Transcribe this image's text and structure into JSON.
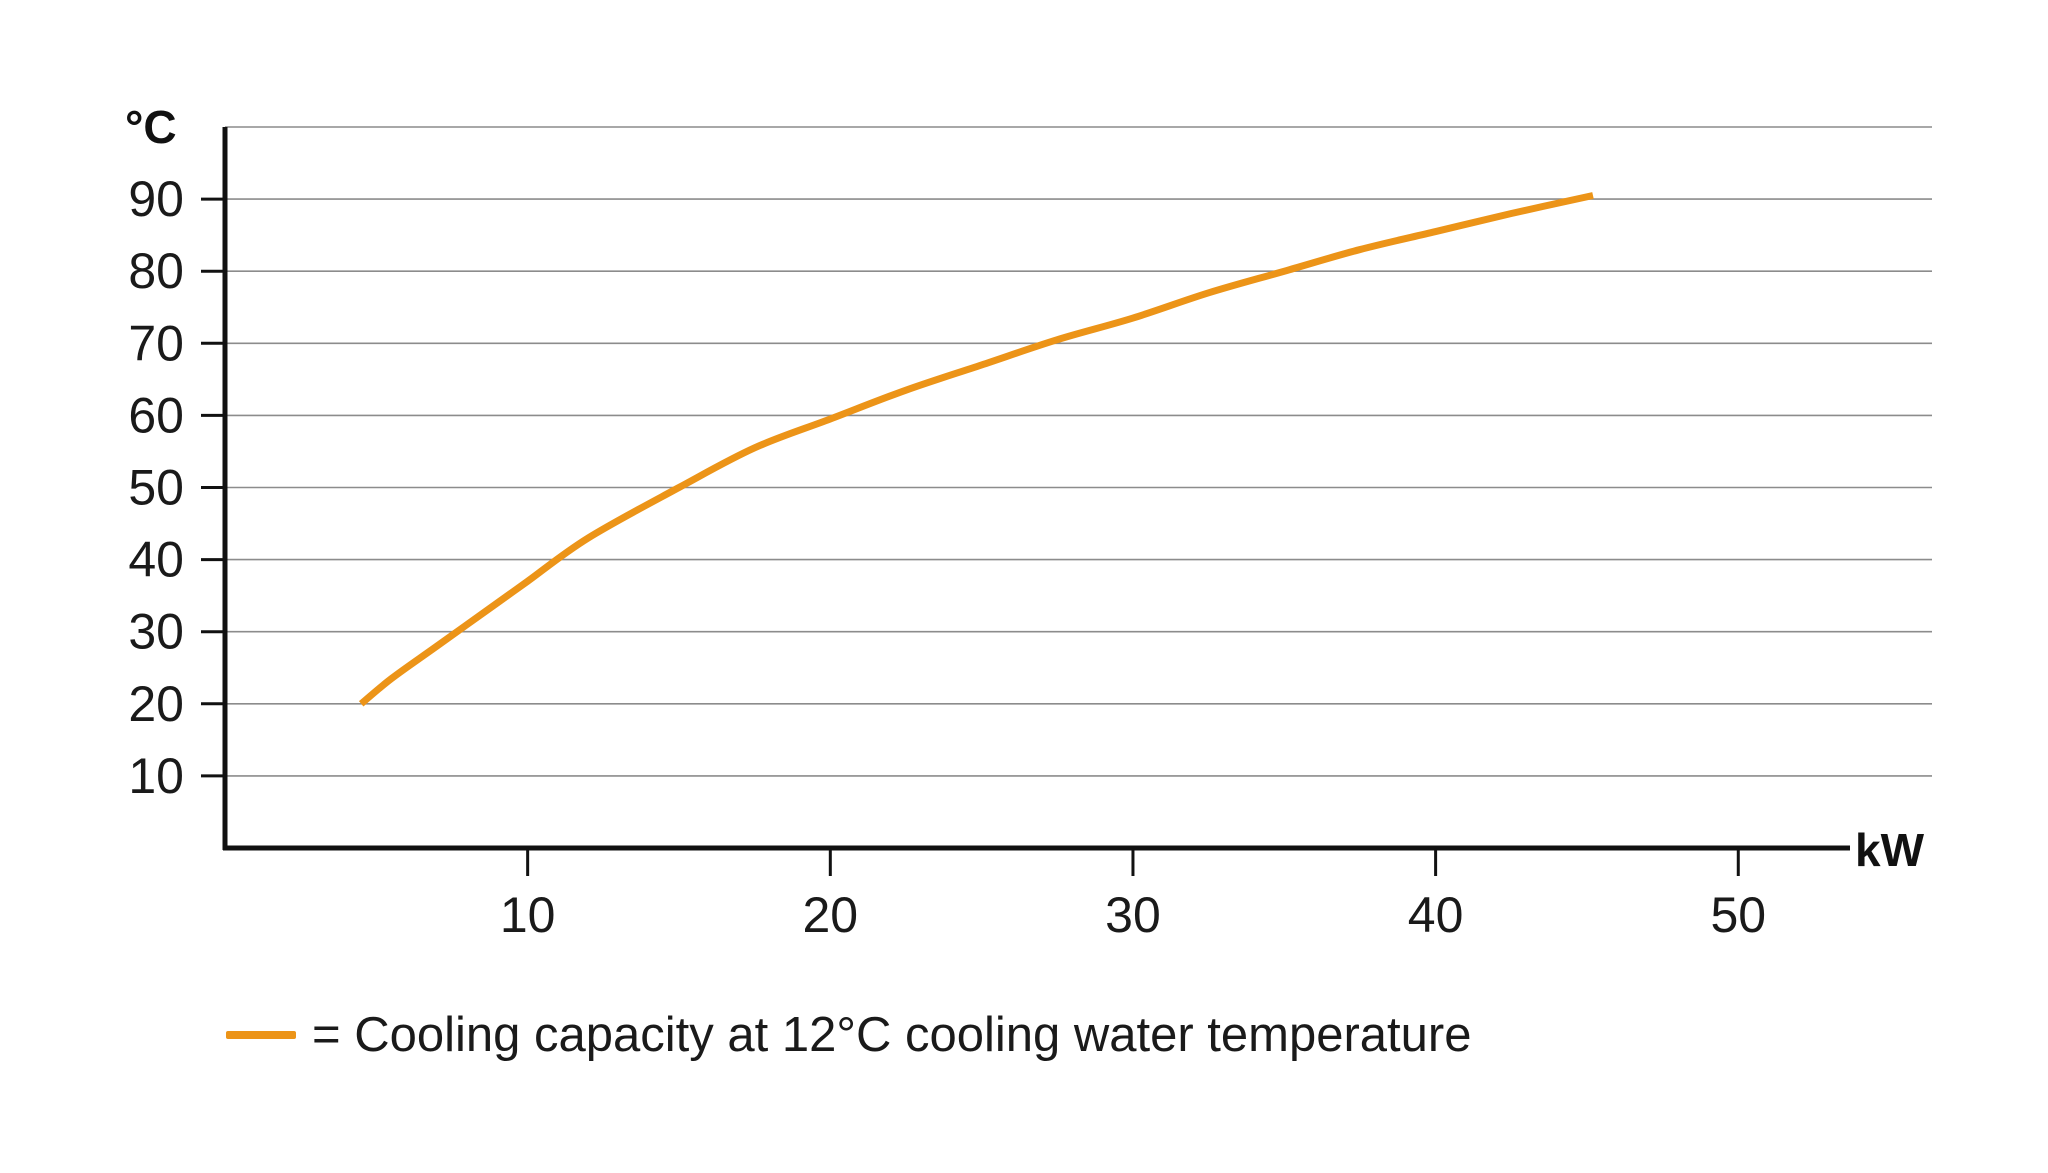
{
  "chart_data": {
    "type": "line",
    "title": "",
    "xlabel": "kW",
    "ylabel": "°C",
    "xlim": [
      0,
      56.5
    ],
    "ylim": [
      0,
      100
    ],
    "x_ticks": [
      10,
      20,
      30,
      40,
      50
    ],
    "y_ticks": [
      10,
      20,
      30,
      40,
      50,
      60,
      70,
      80,
      90
    ],
    "grid": "horizontal",
    "series": [
      {
        "name": "= Cooling capacity at 12°C cooling water temperature",
        "color": "#ec9418",
        "x": [
          4.5,
          5.5,
          7,
          9,
          10,
          12,
          15,
          17.5,
          20,
          22.5,
          25,
          27.5,
          30,
          32.5,
          35,
          37.5,
          40,
          42.5,
          45.2
        ],
        "y": [
          20,
          23.5,
          28,
          34,
          37,
          43,
          50,
          55.5,
          59.5,
          63.5,
          67,
          70.5,
          73.5,
          77,
          80,
          83,
          85.5,
          88,
          90.5
        ]
      }
    ],
    "legend": {
      "placement": "bottom-left"
    }
  }
}
